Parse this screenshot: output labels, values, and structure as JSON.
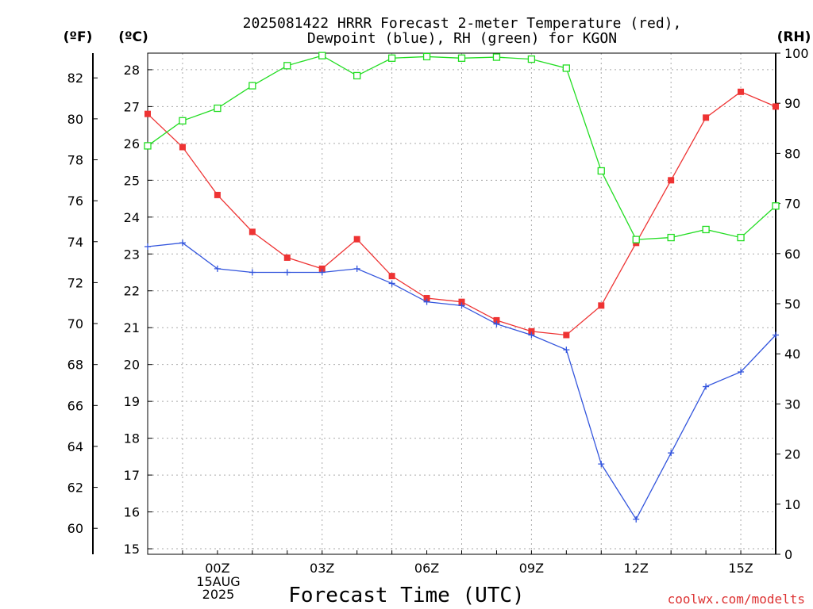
{
  "title_line1": "2025081422 HRRR Forecast 2-meter Temperature (red),",
  "title_line2": "Dewpoint (blue), RH (green) for KGON",
  "unit_f": "(ºF)",
  "unit_c": "(ºC)",
  "unit_rh": "(RH)",
  "date_label_1": "15AUG",
  "date_label_2": "2025",
  "credit": "coolwx.com/modelts",
  "colors": {
    "temperature": "#ee3333",
    "dewpoint": "#3355dd",
    "rh": "#22dd22",
    "grid": "#aaaaaa",
    "axis": "#000000"
  },
  "chart_data": {
    "type": "line",
    "title": "2025081422 HRRR Forecast 2-meter Temperature (red), Dewpoint (blue), RH (green) for KGON",
    "xlabel": "Forecast Time (UTC)",
    "x": [
      22,
      23,
      24,
      25,
      26,
      27,
      28,
      29,
      30,
      31,
      32,
      33,
      34,
      35,
      36,
      37,
      38,
      39,
      40
    ],
    "x_ticks": [
      {
        "x": 24,
        "label": "00Z"
      },
      {
        "x": 27,
        "label": "03Z"
      },
      {
        "x": 30,
        "label": "06Z"
      },
      {
        "x": 33,
        "label": "09Z"
      },
      {
        "x": 36,
        "label": "12Z"
      },
      {
        "x": 39,
        "label": "15Z"
      }
    ],
    "xlim": [
      22,
      40
    ],
    "y_celsius": {
      "ticks": [
        15,
        16,
        17,
        18,
        19,
        20,
        21,
        22,
        23,
        24,
        25,
        26,
        27,
        28
      ],
      "lim": [
        14.85,
        28.45
      ]
    },
    "y_fahrenheit": {
      "ticks": [
        60,
        62,
        64,
        66,
        68,
        70,
        72,
        74,
        76,
        78,
        80,
        82
      ]
    },
    "y_rh": {
      "ticks": [
        0,
        10,
        20,
        30,
        40,
        50,
        60,
        70,
        80,
        90,
        100
      ],
      "lim": [
        0,
        100
      ]
    },
    "grid": true,
    "series": [
      {
        "name": "Temperature (red)",
        "axis": "celsius",
        "marker": "filled-square",
        "values": [
          26.8,
          25.9,
          24.6,
          23.6,
          22.9,
          22.6,
          23.4,
          22.4,
          21.8,
          21.7,
          21.2,
          20.9,
          20.8,
          21.6,
          23.3,
          25.0,
          26.7,
          27.4,
          27.0
        ]
      },
      {
        "name": "Dewpoint (blue)",
        "axis": "celsius",
        "marker": "plus",
        "values": [
          23.2,
          23.3,
          22.6,
          22.5,
          22.5,
          22.5,
          22.6,
          22.2,
          21.7,
          21.6,
          21.1,
          20.8,
          20.4,
          17.3,
          15.8,
          17.6,
          19.4,
          19.8,
          20.8
        ]
      },
      {
        "name": "RH (green)",
        "axis": "rh",
        "marker": "open-square",
        "values": [
          81.5,
          86.5,
          89,
          93.5,
          97.5,
          99.5,
          95.5,
          99,
          99.3,
          99,
          99.2,
          98.8,
          97,
          76.5,
          62.8,
          63.2,
          64.8,
          63.2,
          69.5
        ]
      }
    ]
  }
}
